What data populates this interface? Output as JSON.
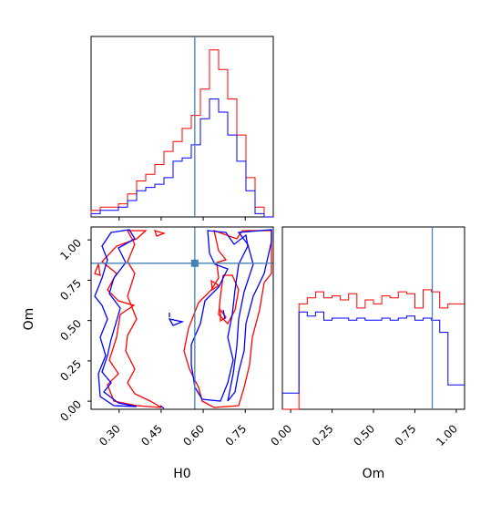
{
  "chart_data": {
    "type": "corner",
    "parameters": [
      "H0",
      "Om"
    ],
    "truth": {
      "H0": 0.57,
      "Om": 0.855
    },
    "colors": {
      "series_a": "#ff0000",
      "series_b": "#0000ff",
      "truth": "#4682b4"
    },
    "series": [
      {
        "color": "#ff0000",
        "H0_hist": {
          "edges": [
            0.2,
            0.2325,
            0.265,
            0.2975,
            0.33,
            0.3625,
            0.395,
            0.4275,
            0.46,
            0.4925,
            0.525,
            0.5575,
            0.59,
            0.6225,
            0.655,
            0.6875,
            0.72,
            0.7525,
            0.785,
            0.8175,
            0.85
          ],
          "counts": [
            2,
            3,
            3,
            4,
            7,
            11,
            13,
            16,
            20,
            23,
            27,
            31,
            39,
            51,
            45,
            36,
            25,
            12,
            3,
            0
          ]
        },
        "Om_hist": {
          "edges": [
            0.0,
            0.05,
            0.1,
            0.15,
            0.2,
            0.25,
            0.3,
            0.35,
            0.4,
            0.45,
            0.5,
            0.55,
            0.6,
            0.65,
            0.7,
            0.75,
            0.8,
            0.85,
            0.9,
            0.95,
            1.0
          ],
          "counts": [
            0,
            52,
            55,
            58,
            55,
            56,
            54,
            57,
            50,
            54,
            52,
            56,
            55,
            58,
            57,
            50,
            59,
            58,
            50,
            52
          ]
        }
      },
      {
        "color": "#0000ff",
        "H0_hist": {
          "edges": [
            0.2,
            0.2325,
            0.265,
            0.2975,
            0.33,
            0.3625,
            0.395,
            0.4275,
            0.46,
            0.4925,
            0.525,
            0.5575,
            0.59,
            0.6225,
            0.655,
            0.6875,
            0.72,
            0.7525,
            0.785,
            0.8175,
            0.85
          ],
          "counts": [
            1,
            2,
            2,
            3,
            5,
            8,
            9,
            10,
            12,
            17,
            18,
            22,
            30,
            36,
            32,
            25,
            17,
            8,
            1,
            0
          ]
        },
        "Om_hist": {
          "edges": [
            0.0,
            0.05,
            0.1,
            0.15,
            0.2,
            0.25,
            0.3,
            0.35,
            0.4,
            0.45,
            0.5,
            0.55,
            0.6,
            0.65,
            0.7,
            0.75,
            0.8,
            0.85,
            0.9,
            0.95,
            1.0
          ],
          "counts": [
            8,
            48,
            46,
            48,
            44,
            45,
            45,
            44,
            45,
            44,
            44,
            45,
            44,
            45,
            46,
            44,
            45,
            44,
            38,
            12
          ]
        }
      }
    ],
    "joint_panel": {
      "xlabel": "H0",
      "ylabel": "Om",
      "xlim": [
        0.2,
        0.85
      ],
      "ylim": [
        -0.05,
        1.08
      ],
      "xticks": [
        "0.30",
        "0.45",
        "0.60",
        "0.75"
      ],
      "yticks": [
        "0.00",
        "0.25",
        "0.50",
        "0.75",
        "1.00"
      ]
    },
    "Om_panel": {
      "xlabel": "Om",
      "xlim": [
        -0.05,
        1.05
      ],
      "xticks": [
        "0.00",
        "0.25",
        "0.50",
        "0.75",
        "1.00"
      ]
    }
  }
}
